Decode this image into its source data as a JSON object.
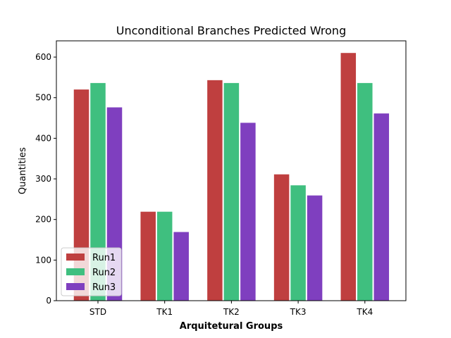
{
  "chart_data": {
    "type": "bar",
    "title": "Unconditional Branches Predicted Wrong",
    "xlabel": "Arquitetural Groups",
    "ylabel": "Quantities",
    "categories": [
      "STD",
      "TK1",
      "TK2",
      "TK3",
      "TK4"
    ],
    "ylim": [
      0,
      640
    ],
    "yticks": [
      0,
      100,
      200,
      300,
      400,
      500,
      600
    ],
    "grid": false,
    "legend_position": "lower-left",
    "series": [
      {
        "name": "Run1",
        "color": "#bf3f3f",
        "values": [
          521,
          220,
          544,
          312,
          611
        ]
      },
      {
        "name": "Run2",
        "color": "#3fbf7f",
        "values": [
          537,
          220,
          537,
          285,
          537
        ]
      },
      {
        "name": "Run3",
        "color": "#7f3fbf",
        "values": [
          477,
          170,
          439,
          260,
          462
        ]
      }
    ]
  }
}
